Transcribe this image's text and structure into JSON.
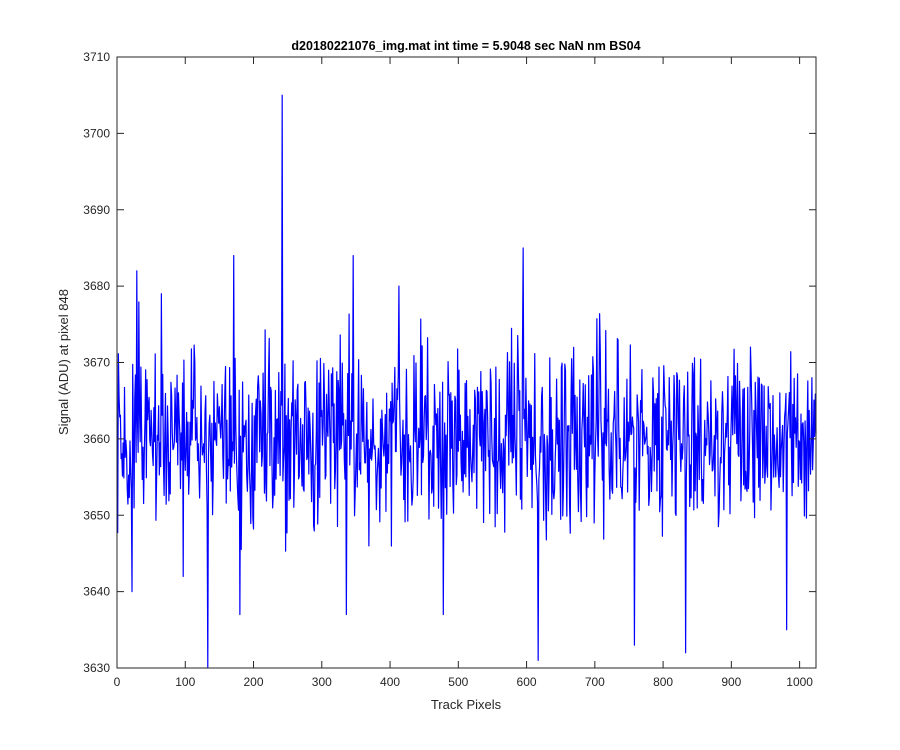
{
  "chart_data": {
    "type": "line",
    "title": "d20180221076_img.mat int time = 5.9048 sec  NaN nm BS04",
    "xlabel": "Track Pixels",
    "ylabel": "Signal (ADU) at pixel 848",
    "xlim": [
      0,
      1024
    ],
    "ylim": [
      3630,
      3710
    ],
    "xticks": [
      0,
      100,
      200,
      300,
      400,
      500,
      600,
      700,
      800,
      900,
      1000
    ],
    "yticks": [
      3630,
      3640,
      3650,
      3660,
      3670,
      3680,
      3690,
      3700,
      3710
    ],
    "grid": false,
    "line_color": "#0000ff",
    "series": [
      {
        "x_start": 1,
        "x_step": 1,
        "n_points": 1024,
        "mean": 3660,
        "approx_std": 6,
        "notable_points": [
          {
            "x": 22,
            "y": 3640
          },
          {
            "x": 29,
            "y": 3682
          },
          {
            "x": 65,
            "y": 3679
          },
          {
            "x": 97,
            "y": 3642
          },
          {
            "x": 133,
            "y": 3630
          },
          {
            "x": 171,
            "y": 3684
          },
          {
            "x": 180,
            "y": 3637
          },
          {
            "x": 242,
            "y": 3705
          },
          {
            "x": 336,
            "y": 3637
          },
          {
            "x": 346,
            "y": 3684
          },
          {
            "x": 413,
            "y": 3680
          },
          {
            "x": 478,
            "y": 3637
          },
          {
            "x": 595,
            "y": 3685
          },
          {
            "x": 617,
            "y": 3631
          },
          {
            "x": 758,
            "y": 3633
          },
          {
            "x": 833,
            "y": 3632
          },
          {
            "x": 981,
            "y": 3635
          },
          {
            "x": 1018,
            "y": 3668
          }
        ]
      }
    ]
  }
}
